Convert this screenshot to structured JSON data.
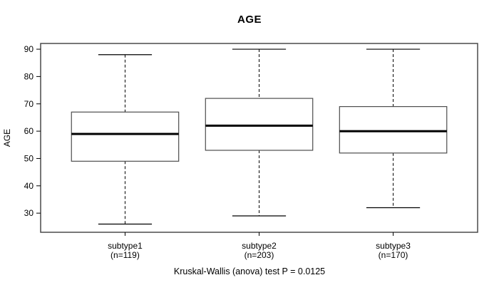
{
  "chart_data": {
    "type": "boxplot",
    "title": "AGE",
    "ylabel": "AGE",
    "xlabel": "",
    "annotation": "Kruskal-Wallis (anova) test P = 0.0125",
    "yticks": [
      30,
      40,
      50,
      60,
      70,
      80,
      90
    ],
    "ylim": [
      23.0,
      92.1
    ],
    "xlim": [
      0.37,
      3.63
    ],
    "box_width_units": 0.8,
    "grid": false,
    "legend": "none",
    "categories": [
      "subtype1",
      "subtype2",
      "subtype3"
    ],
    "series": [
      {
        "label": "subtype1",
        "sublabel": "(n=119)",
        "n": 119,
        "whisker_low": 26,
        "q1": 49,
        "median": 59,
        "q3": 67,
        "whisker_high": 88
      },
      {
        "label": "subtype2",
        "sublabel": "(n=203)",
        "n": 203,
        "whisker_low": 29,
        "q1": 53,
        "median": 62,
        "q3": 72,
        "whisker_high": 90
      },
      {
        "label": "subtype3",
        "sublabel": "(n=170)",
        "n": 170,
        "whisker_low": 32,
        "q1": 52,
        "median": 60,
        "q3": 69,
        "whisker_high": 90
      }
    ],
    "colors": {
      "background": "#ffffff",
      "frame": "#4a4a4a",
      "box_stroke": "#4d4d4d",
      "box_fill": "#ffffff",
      "median": "#000000",
      "whisker": "#000000",
      "text": "#000000"
    }
  }
}
